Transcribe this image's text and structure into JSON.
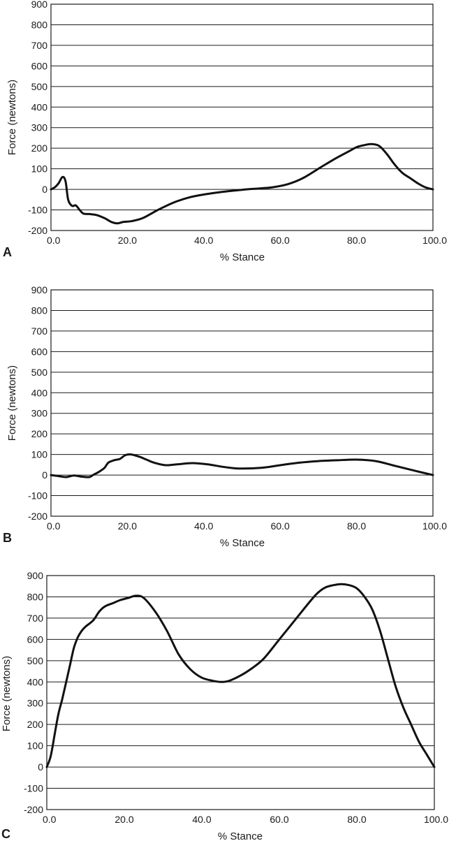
{
  "chart_data": [
    {
      "type": "line",
      "panel_label": "A",
      "xlabel": "% Stance",
      "ylabel": "Force (newtons)",
      "xlim": [
        0,
        100
      ],
      "ylim": [
        -200,
        900
      ],
      "x_ticks": [
        "0.0",
        "20.0",
        "40.0",
        "60.0",
        "80.0",
        "100.0"
      ],
      "y_ticks": [
        "900",
        "800",
        "700",
        "600",
        "500",
        "400",
        "300",
        "200",
        "100",
        "0",
        "-100",
        "-200"
      ],
      "grid": "horizontal",
      "series": [
        {
          "name": "Force",
          "x": [
            0,
            1,
            2,
            3,
            3.8,
            4.5,
            5.5,
            6.5,
            7.5,
            8.5,
            10,
            12,
            14,
            16,
            17.5,
            19,
            21,
            24,
            28,
            32,
            36,
            40,
            45,
            50,
            55,
            58,
            62,
            66,
            70,
            74,
            78,
            80,
            82,
            84,
            86,
            88,
            90,
            92,
            94,
            96,
            98,
            100
          ],
          "y": [
            0,
            10,
            30,
            60,
            40,
            -50,
            -80,
            -78,
            -100,
            -118,
            -120,
            -125,
            -140,
            -160,
            -165,
            -158,
            -155,
            -140,
            -100,
            -65,
            -40,
            -25,
            -12,
            -2,
            5,
            10,
            25,
            55,
            100,
            145,
            185,
            205,
            215,
            220,
            210,
            170,
            120,
            80,
            55,
            30,
            10,
            0
          ]
        }
      ]
    },
    {
      "type": "line",
      "panel_label": "B",
      "xlabel": "% Stance",
      "ylabel": "Force (newtons)",
      "xlim": [
        0,
        100
      ],
      "ylim": [
        -200,
        900
      ],
      "x_ticks": [
        "0.0",
        "20.0",
        "40.0",
        "60.0",
        "80.0",
        "100.0"
      ],
      "y_ticks": [
        "900",
        "800",
        "700",
        "600",
        "500",
        "400",
        "300",
        "200",
        "100",
        "0",
        "-100",
        "-200"
      ],
      "grid": "horizontal",
      "series": [
        {
          "name": "Force",
          "x": [
            0,
            2,
            4,
            6,
            8,
            10,
            11,
            12.5,
            14,
            15,
            16.5,
            18,
            19.5,
            21,
            23,
            25,
            27,
            30,
            33,
            37,
            41,
            45,
            49,
            55,
            60,
            65,
            70,
            75,
            80,
            85,
            90,
            95,
            100
          ],
          "y": [
            0,
            -5,
            -10,
            -2,
            -8,
            -10,
            0,
            15,
            35,
            60,
            72,
            78,
            97,
            100,
            90,
            75,
            60,
            48,
            52,
            58,
            52,
            40,
            32,
            35,
            48,
            60,
            68,
            72,
            75,
            68,
            45,
            22,
            0
          ]
        }
      ]
    },
    {
      "type": "line",
      "panel_label": "C",
      "xlabel": "% Stance",
      "ylabel": "Force (newtons)",
      "xlim": [
        0,
        100
      ],
      "ylim": [
        -200,
        900
      ],
      "x_ticks": [
        "0.0",
        "20.0",
        "40.0",
        "60.0",
        "80.0",
        "100.0"
      ],
      "y_ticks": [
        "900",
        "800",
        "700",
        "600",
        "500",
        "400",
        "300",
        "200",
        "100",
        "0",
        "-100",
        "-200"
      ],
      "grid": "horizontal",
      "series": [
        {
          "name": "Force",
          "x": [
            0,
            1,
            2,
            3,
            4,
            5,
            6,
            7,
            8,
            9,
            10,
            12,
            13.5,
            15,
            17,
            19,
            21,
            23,
            25,
            28,
            31,
            34,
            37,
            40,
            43,
            45,
            47,
            50,
            53,
            56,
            60,
            64,
            68,
            70,
            72,
            74,
            76,
            78,
            80,
            82,
            84,
            86,
            88,
            90,
            92,
            94,
            96,
            98,
            100
          ],
          "y": [
            0,
            50,
            150,
            250,
            320,
            400,
            480,
            560,
            610,
            640,
            660,
            690,
            730,
            755,
            770,
            785,
            795,
            805,
            795,
            730,
            640,
            530,
            460,
            420,
            405,
            400,
            405,
            430,
            465,
            510,
            600,
            690,
            780,
            820,
            845,
            855,
            860,
            855,
            840,
            800,
            740,
            640,
            510,
            380,
            280,
            200,
            120,
            60,
            0
          ]
        }
      ]
    }
  ]
}
